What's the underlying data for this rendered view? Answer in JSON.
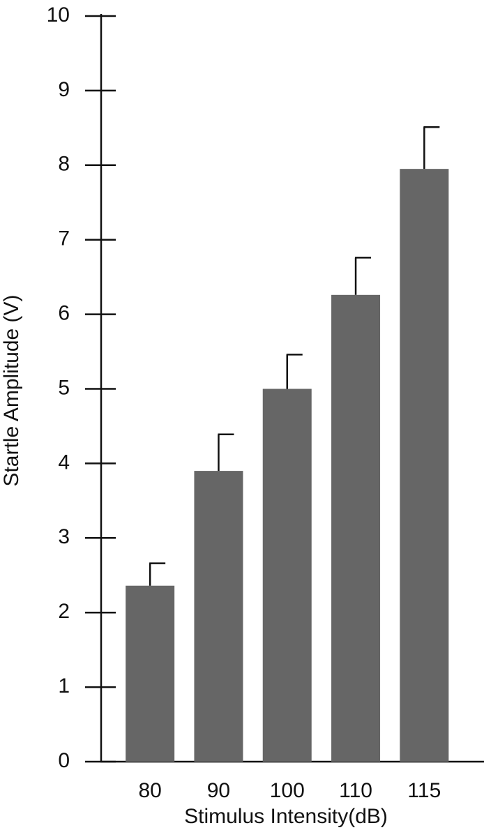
{
  "chart_data": {
    "type": "bar",
    "xlabel": "Stimulus Intensity(dB)",
    "ylabel": "Startle Amplitude (V)",
    "categories": [
      "80",
      "90",
      "100",
      "110",
      "115"
    ],
    "values": [
      2.36,
      3.9,
      5.0,
      6.26,
      7.95
    ],
    "errors": [
      0.3,
      0.49,
      0.46,
      0.5,
      0.56
    ],
    "color": "#666666",
    "ylim": [
      0,
      10
    ],
    "yticks": [
      0,
      1,
      2,
      3,
      4,
      5,
      6,
      7,
      8,
      9,
      10
    ],
    "grid": false
  }
}
